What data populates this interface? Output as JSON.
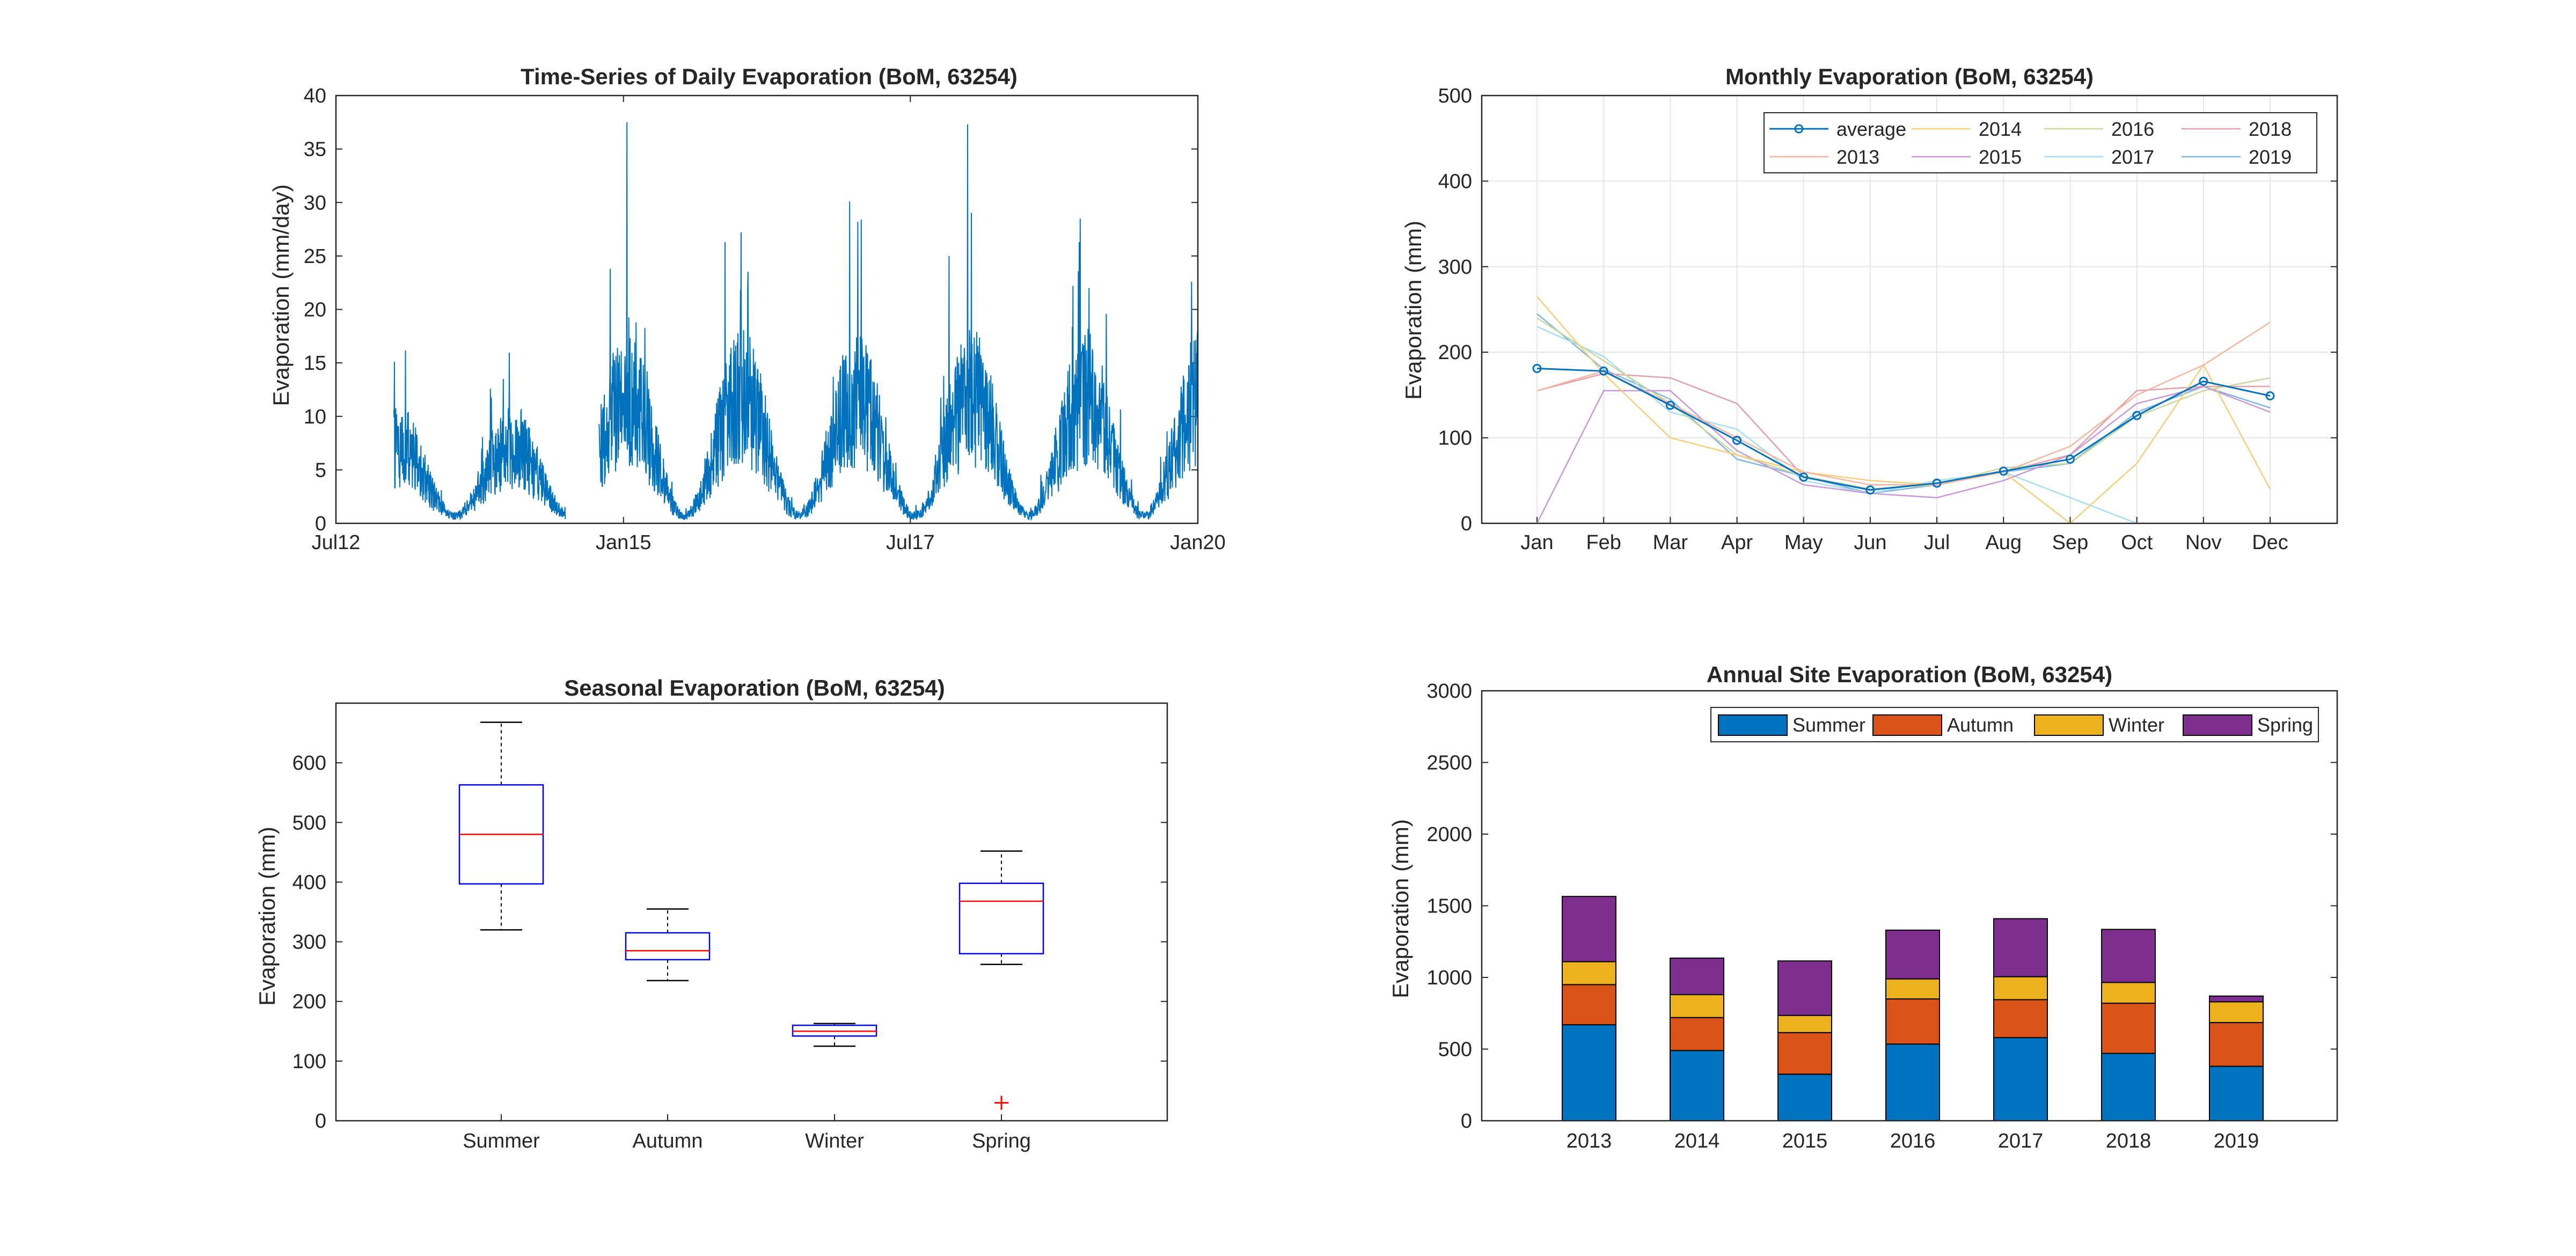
{
  "figure": {
    "background": "#ffffff"
  },
  "chart_data": [
    {
      "id": "ts",
      "type": "line",
      "title": "Time-Series of Daily Evaporation (BoM, 63254)",
      "xlabel": "",
      "ylabel": "Evaporation (mm/day)",
      "xlim": [
        "2012-07-01",
        "2020-01-01"
      ],
      "ylim": [
        0,
        40
      ],
      "x_ticks": [
        "Jul12",
        "Jan15",
        "Jul17",
        "Jan20"
      ],
      "y_ticks": [
        0,
        5,
        10,
        15,
        20,
        25,
        30,
        35,
        40
      ],
      "color": "#0072bd",
      "grid": false,
      "series": [
        {
          "segments": [
            {
              "x_start": "2013-01-01",
              "x_end": "2014-06-30",
              "step_days": 1,
              "typical_range": [
                0,
                15
              ],
              "peaks": [
                {
                  "x": "2013-01-03",
                  "y": 15.1
                },
                {
                  "x": "2013-12-15",
                  "y": 13.5
                }
              ]
            },
            {
              "x_start": "2014-10-15",
              "x_end": "2019-12-31",
              "step_days": 1,
              "typical_range": [
                0,
                25
              ],
              "peaks": [
                {
                  "x": "2014-11-20",
                  "y": 23.8
                },
                {
                  "x": "2015-01-12",
                  "y": 37.5
                },
                {
                  "x": "2015-02-10",
                  "y": 18.8
                },
                {
                  "x": "2015-11-20",
                  "y": 26.3
                },
                {
                  "x": "2016-01-10",
                  "y": 27.2
                },
                {
                  "x": "2016-12-20",
                  "y": 30.1
                },
                {
                  "x": "2017-01-15",
                  "y": 28.2
                },
                {
                  "x": "2017-11-01",
                  "y": 25.0
                },
                {
                  "x": "2017-12-30",
                  "y": 37.3
                },
                {
                  "x": "2018-12-20",
                  "y": 26.3
                },
                {
                  "x": "2019-01-20",
                  "y": 22.0
                },
                {
                  "x": "2019-11-20",
                  "y": 8.0
                }
              ]
            }
          ]
        }
      ]
    },
    {
      "id": "monthly",
      "type": "line",
      "title": "Monthly Evaporation (BoM, 63254)",
      "xlabel": "",
      "ylabel": "Evaporation (mm)",
      "ylim": [
        0,
        500
      ],
      "y_ticks": [
        0,
        100,
        200,
        300,
        400,
        500
      ],
      "categories": [
        "Jan",
        "Feb",
        "Mar",
        "Apr",
        "May",
        "Jun",
        "Jul",
        "Aug",
        "Sep",
        "Oct",
        "Nov",
        "Dec"
      ],
      "grid": true,
      "legend_position": "top-right",
      "series": [
        {
          "name": "average",
          "color": "#0072bd",
          "marker": "circle",
          "values": [
            181,
            178,
            138,
            97,
            54,
            39,
            47,
            61,
            75,
            126,
            166,
            149
          ]
        },
        {
          "name": "2013",
          "color": "#f5b6a0",
          "values": [
            155,
            178,
            140,
            100,
            60,
            45,
            45,
            60,
            90,
            150,
            185,
            235
          ]
        },
        {
          "name": "2014",
          "color": "#f6ce7c",
          "values": [
            265,
            175,
            100,
            80,
            60,
            50,
            45,
            60,
            0,
            70,
            185,
            40
          ]
        },
        {
          "name": "2015",
          "color": "#c69ad6",
          "values": [
            0,
            155,
            155,
            85,
            45,
            35,
            30,
            50,
            80,
            140,
            160,
            130
          ]
        },
        {
          "name": "2016",
          "color": "#c7d9a0",
          "values": [
            240,
            190,
            140,
            80,
            55,
            40,
            45,
            65,
            70,
            125,
            155,
            170
          ]
        },
        {
          "name": "2017",
          "color": "#a8ddf1",
          "values": [
            230,
            195,
            130,
            110,
            50,
            35,
            50,
            60,
            30,
            0,
            0,
            0
          ]
        },
        {
          "name": "2018",
          "color": "#e4a0aa",
          "values": [
            155,
            175,
            170,
            140,
            55,
            40,
            45,
            60,
            80,
            155,
            160,
            160
          ]
        },
        {
          "name": "2019",
          "color": "#7fb6dd",
          "values": [
            245,
            180,
            145,
            75,
            55,
            35,
            45,
            60,
            70,
            130,
            160,
            135
          ]
        }
      ]
    },
    {
      "id": "seasonal",
      "type": "box",
      "title": "Seasonal Evaporation (BoM, 63254)",
      "xlabel": "",
      "ylabel": "Evaporation (mm)",
      "ylim": [
        0,
        700
      ],
      "y_ticks": [
        0,
        100,
        200,
        300,
        400,
        500,
        600
      ],
      "categories": [
        "Summer",
        "Autumn",
        "Winter",
        "Spring"
      ],
      "box_color": "#0000ff",
      "median_color": "#ff0000",
      "whisker_color": "#000000",
      "outlier_color": "#ff0000",
      "boxes": [
        {
          "min": 320,
          "q1": 397,
          "median": 480,
          "q3": 563,
          "max": 668,
          "outliers": []
        },
        {
          "min": 235,
          "q1": 270,
          "median": 285,
          "q3": 315,
          "max": 355,
          "outliers": []
        },
        {
          "min": 125,
          "q1": 142,
          "median": 150,
          "q3": 160,
          "max": 163,
          "outliers": []
        },
        {
          "min": 262,
          "q1": 280,
          "median": 368,
          "q3": 398,
          "max": 452,
          "outliers": [
            30
          ]
        }
      ]
    },
    {
      "id": "annual",
      "type": "bar",
      "stacked": true,
      "title": "Annual Site Evaporation (BoM, 63254)",
      "xlabel": "",
      "ylabel": "Evaporation (mm)",
      "ylim": [
        0,
        3000
      ],
      "y_ticks": [
        0,
        500,
        1000,
        1500,
        2000,
        2500,
        3000
      ],
      "categories": [
        "2013",
        "2014",
        "2015",
        "2016",
        "2017",
        "2018",
        "2019"
      ],
      "legend_position": "top-right",
      "series": [
        {
          "name": "Summer",
          "color": "#0072bd",
          "values": [
            670,
            490,
            325,
            535,
            580,
            470,
            380
          ]
        },
        {
          "name": "Autumn",
          "color": "#d95319",
          "values": [
            280,
            230,
            290,
            315,
            265,
            350,
            305
          ]
        },
        {
          "name": "Winter",
          "color": "#edb120",
          "values": [
            160,
            160,
            120,
            140,
            160,
            145,
            145
          ]
        },
        {
          "name": "Spring",
          "color": "#7e2f8e",
          "values": [
            455,
            255,
            380,
            340,
            405,
            370,
            40
          ]
        }
      ]
    }
  ]
}
